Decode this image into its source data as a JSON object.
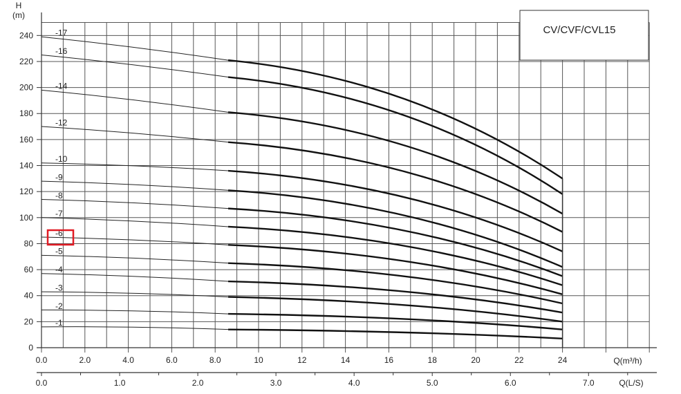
{
  "chart_data": {
    "type": "line",
    "title": "CV/CVF/CVL15",
    "ylabel": "H",
    "yunit": "(m)",
    "xlabel": "Q(m³/h)",
    "x2label": "Q(L/S)",
    "xlim": [
      0,
      28
    ],
    "ylim": [
      0,
      250
    ],
    "x_ticks": [
      "0.0",
      "2.0",
      "4.0",
      "6.0",
      "8.0",
      "10",
      "12",
      "14",
      "16",
      "18",
      "20",
      "22",
      "24"
    ],
    "x2_ticks": [
      "0.0",
      "1.0",
      "2.0",
      "3.0",
      "4.0",
      "5.0",
      "6.0",
      "7.0"
    ],
    "y_ticks": [
      "0",
      "20",
      "40",
      "60",
      "80",
      "100",
      "120",
      "140",
      "160",
      "180",
      "200",
      "220",
      "240"
    ],
    "grid": true,
    "highlight": "-6",
    "series": [
      {
        "name": "-1",
        "x": [
          0,
          8.6,
          24
        ],
        "y": [
          16,
          14,
          7
        ]
      },
      {
        "name": "-2",
        "x": [
          0,
          8.6,
          24
        ],
        "y": [
          29,
          26,
          14
        ]
      },
      {
        "name": "-3",
        "x": [
          0,
          8.6,
          24
        ],
        "y": [
          43,
          39,
          20
        ]
      },
      {
        "name": "-4",
        "x": [
          0,
          8.6,
          24
        ],
        "y": [
          57,
          51,
          27
        ]
      },
      {
        "name": "-5",
        "x": [
          0,
          8.6,
          24
        ],
        "y": [
          71,
          65,
          34
        ]
      },
      {
        "name": "-6",
        "x": [
          0,
          8.6,
          24
        ],
        "y": [
          85,
          79,
          41
        ]
      },
      {
        "name": "-7",
        "x": [
          0,
          8.6,
          24
        ],
        "y": [
          100,
          93,
          48
        ]
      },
      {
        "name": "-8",
        "x": [
          0,
          8.6,
          24
        ],
        "y": [
          114,
          107,
          55
        ]
      },
      {
        "name": "-9",
        "x": [
          0,
          8.6,
          24
        ],
        "y": [
          128,
          121,
          62
        ]
      },
      {
        "name": "-10",
        "x": [
          0,
          8.6,
          24
        ],
        "y": [
          142,
          136,
          74
        ]
      },
      {
        "name": "-12",
        "x": [
          0,
          8.6,
          24
        ],
        "y": [
          170,
          158,
          89
        ]
      },
      {
        "name": "-14",
        "x": [
          0,
          8.6,
          24
        ],
        "y": [
          198,
          181,
          103
        ]
      },
      {
        "name": "-16",
        "x": [
          0,
          8.6,
          24
        ],
        "y": [
          225,
          208,
          118
        ]
      },
      {
        "name": "-17",
        "x": [
          0,
          8.6,
          24
        ],
        "y": [
          239,
          221,
          130
        ]
      }
    ]
  }
}
